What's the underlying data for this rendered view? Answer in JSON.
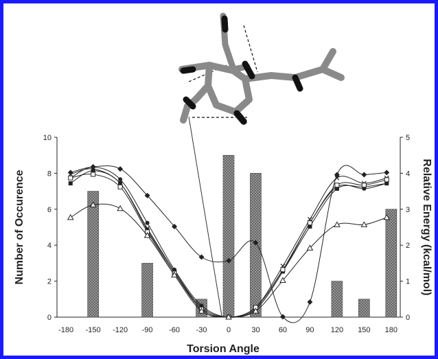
{
  "colors": {
    "frame": "#1a1aff",
    "bar_fill": "#666666",
    "line": "#222222"
  },
  "chart_data": {
    "type": "bar",
    "xlabel": "Torsion Angle",
    "ylabel_left": "Number of Occurence",
    "ylabel_right": "Relative Energy (kcal/mol)",
    "x_ticks": [
      -180,
      -150,
      -120,
      -90,
      -60,
      -30,
      0,
      30,
      60,
      90,
      120,
      150,
      180
    ],
    "xlim": [
      -190,
      190
    ],
    "ylim_left": [
      0,
      10
    ],
    "ylim_right": [
      0,
      5
    ],
    "y_ticks_left": [
      0,
      2,
      4,
      6,
      8,
      10
    ],
    "y_ticks_right": [
      0,
      1,
      2,
      3,
      4,
      5
    ],
    "bars": {
      "x": [
        -150,
        -90,
        -30,
        0,
        30,
        120,
        150,
        180
      ],
      "values": [
        7,
        3,
        1,
        9,
        8,
        2,
        1,
        6
      ]
    },
    "series": [
      {
        "marker": "diamond-filled",
        "x": [
          -175,
          -150,
          -120,
          -90,
          -60,
          -30,
          0,
          30,
          60,
          90,
          120,
          150,
          175
        ],
        "values": [
          4.02,
          4.18,
          4.12,
          3.38,
          2.52,
          1.67,
          1.57,
          2.07,
          0.01,
          0.42,
          3.96,
          3.96,
          4.02
        ]
      },
      {
        "marker": "circle-filled",
        "x": [
          -175,
          -150,
          -120,
          -90,
          -60,
          -30,
          0,
          30,
          60,
          90,
          120,
          150,
          175
        ],
        "values": [
          3.87,
          4.17,
          3.83,
          2.62,
          1.32,
          0.32,
          0.0,
          0.22,
          1.27,
          2.62,
          3.62,
          3.57,
          3.72
        ]
      },
      {
        "marker": "x",
        "x": [
          -175,
          -150,
          -120,
          -90,
          -60,
          -30,
          0,
          30,
          60,
          90,
          120,
          150,
          175
        ],
        "values": [
          3.97,
          4.12,
          3.72,
          2.47,
          1.27,
          0.27,
          0.0,
          0.27,
          1.42,
          2.72,
          3.87,
          3.72,
          3.87
        ]
      },
      {
        "marker": "square-filled",
        "x": [
          -175,
          -150,
          -120,
          -90,
          -60,
          -30,
          0,
          30,
          60,
          90,
          120,
          150,
          175
        ],
        "values": [
          3.72,
          4.07,
          3.72,
          2.42,
          1.27,
          0.22,
          0.0,
          0.22,
          1.27,
          2.52,
          3.57,
          3.62,
          3.72
        ]
      },
      {
        "marker": "square-open",
        "x": [
          -175,
          -150,
          -120,
          -90,
          -60,
          -30,
          0,
          30,
          60,
          90,
          120,
          150,
          175
        ],
        "values": [
          3.87,
          3.97,
          3.62,
          2.37,
          1.22,
          0.22,
          0.0,
          0.27,
          1.32,
          2.62,
          3.67,
          3.67,
          3.82
        ]
      },
      {
        "marker": "triangle-open",
        "x": [
          -175,
          -150,
          -120,
          -90,
          -60,
          -30,
          0,
          30,
          60,
          90,
          120,
          150,
          175
        ],
        "values": [
          2.77,
          3.12,
          3.02,
          2.27,
          1.17,
          0.17,
          0.0,
          0.17,
          1.02,
          1.92,
          2.57,
          2.57,
          2.77
        ]
      }
    ],
    "grid": false
  }
}
